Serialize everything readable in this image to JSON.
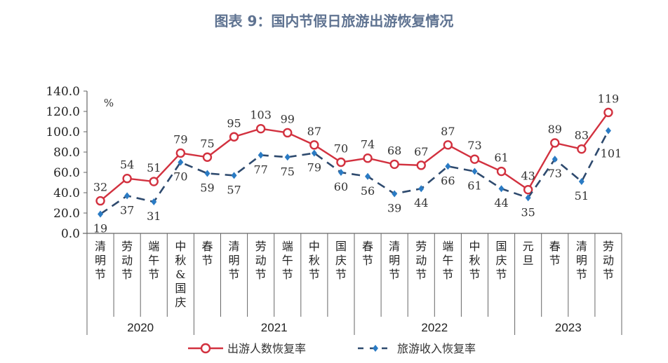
{
  "title": "图表 9：国内节假日旅游出游恢复情况",
  "chart_data": {
    "type": "line",
    "title": "图表 9：国内节假日旅游出游恢复情况",
    "ylabel": "%",
    "ylim": [
      0,
      140
    ],
    "yticks": [
      "0.0",
      "20.0",
      "40.0",
      "60.0",
      "80.0",
      "100.0",
      "120.0",
      "140.0"
    ],
    "categories": [
      "清明节",
      "劳动节",
      "端午节",
      "中秋&国庆",
      "春节",
      "清明节",
      "劳动节",
      "端午节",
      "中秋节",
      "国庆节",
      "春节",
      "清明节",
      "劳动节",
      "端午节",
      "中秋节",
      "国庆节",
      "元旦",
      "春节",
      "清明节",
      "劳动节"
    ],
    "groups": [
      {
        "label": "2020",
        "count": 4
      },
      {
        "label": "2021",
        "count": 6
      },
      {
        "label": "2022",
        "count": 6
      },
      {
        "label": "2023",
        "count": 4
      }
    ],
    "series": [
      {
        "name": "出游人数恢复率",
        "color": "#d2313f",
        "style": "solid-circle",
        "values": [
          32,
          54,
          51,
          79,
          75,
          95,
          103,
          99,
          87,
          70,
          74,
          68,
          67,
          87,
          73,
          61,
          43,
          89,
          83,
          119
        ]
      },
      {
        "name": "旅游收入恢复率",
        "color": "#2e4a6e",
        "style": "dashed-diamond",
        "values": [
          19,
          37,
          31,
          70,
          59,
          57,
          77,
          75,
          79,
          60,
          56,
          39,
          44,
          66,
          61,
          44,
          35,
          73,
          51,
          101
        ]
      }
    ],
    "legend": "bottom",
    "grid": false
  }
}
